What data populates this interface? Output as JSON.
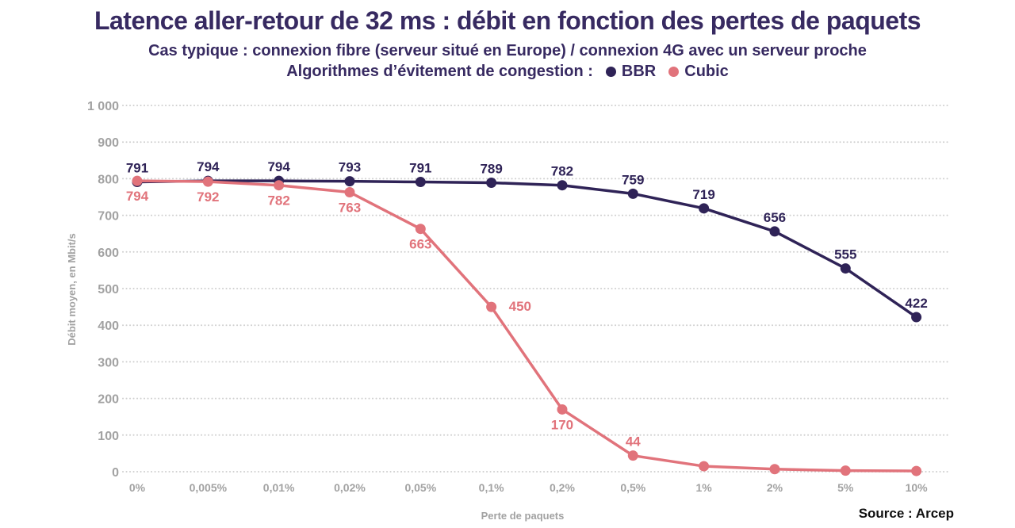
{
  "chart_data": {
    "type": "line",
    "title": "Latence aller-retour de 32 ms : débit en fonction des pertes de paquets",
    "subtitle": "Cas typique : connexion fibre (serveur situé en Europe) / connexion 4G avec un serveur proche",
    "legend_title": "Algorithmes d’évitement de congestion :",
    "legend_position": "top-inline",
    "categories": [
      "0%",
      "0,005%",
      "0,01%",
      "0,02%",
      "0,05%",
      "0,1%",
      "0,2%",
      "0,5%",
      "1%",
      "2%",
      "5%",
      "10%"
    ],
    "series": [
      {
        "name": "BBR",
        "color": "#2f2357",
        "values": [
          791,
          794,
          794,
          793,
          791,
          789,
          782,
          759,
          719,
          656,
          555,
          422
        ],
        "labels": [
          "791",
          "794",
          "794",
          "793",
          "791",
          "789",
          "782",
          "759",
          "719",
          "656",
          "555",
          "422"
        ],
        "label_positions": [
          "above",
          "above",
          "above",
          "above",
          "above",
          "above",
          "above",
          "above",
          "above",
          "above",
          "above",
          "above"
        ]
      },
      {
        "name": "Cubic",
        "color": "#e1737b",
        "values": [
          794,
          792,
          782,
          763,
          663,
          450,
          170,
          44,
          15,
          7,
          3,
          2
        ],
        "labels": [
          "794",
          "792",
          "782",
          "763",
          "663",
          "450",
          "170",
          "44",
          "",
          "",
          "",
          ""
        ],
        "label_positions": [
          "below",
          "below",
          "below",
          "below",
          "below",
          "right",
          "below",
          "above",
          "none",
          "none",
          "none",
          "none"
        ]
      }
    ],
    "xlabel": "Perte de paquets",
    "ylabel": "Débit moyen, en Mbit/s",
    "ylim": [
      0,
      1000
    ],
    "ytick_step": 100,
    "ytick_labels": [
      "0",
      "100",
      "200",
      "300",
      "400",
      "500",
      "600",
      "700",
      "800",
      "900",
      "1 000"
    ],
    "grid": "horizontal-dotted",
    "colors": {
      "title_text": "#372a61",
      "axis_text": "#a2a2a2",
      "grid": "#cfcfcf",
      "source_text": "#111111"
    }
  },
  "footer": {
    "source": "Source : Arcep"
  }
}
